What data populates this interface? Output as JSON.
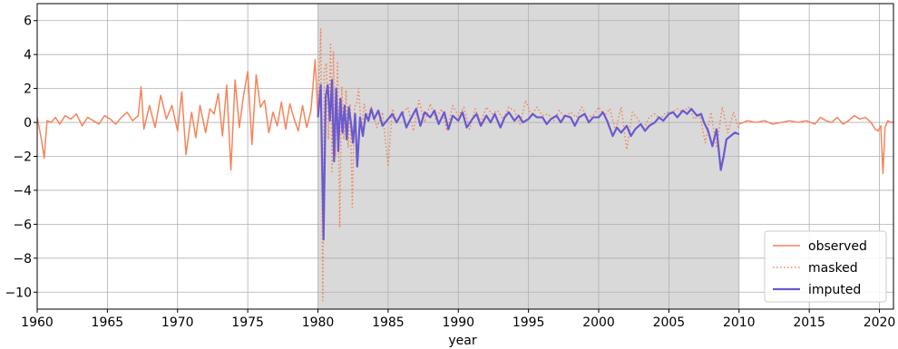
{
  "chart_data": {
    "type": "line",
    "title": "",
    "xlabel": "year",
    "ylabel": "",
    "xlim": [
      1960,
      2021
    ],
    "ylim": [
      -11,
      7
    ],
    "x_ticks": [
      1960,
      1965,
      1970,
      1975,
      1980,
      1985,
      1990,
      1995,
      2000,
      2005,
      2010,
      2015,
      2020
    ],
    "y_ticks": [
      6,
      4,
      2,
      0,
      -2,
      -4,
      -6,
      -8,
      -10
    ],
    "grid": true,
    "legend_position": "bottom-right",
    "shaded_region": {
      "x_start": 1980,
      "x_end": 2010,
      "color": "#d9d9d9"
    },
    "series": [
      {
        "name": "observed",
        "style": "solid",
        "color": "#f5845a",
        "segments": [
          {
            "x": [
              1960.0,
              1960.3,
              1960.5,
              1960.7,
              1961.0,
              1961.3,
              1961.6,
              1962.0,
              1962.4,
              1962.8,
              1963.2,
              1963.6,
              1964.0,
              1964.4,
              1964.8,
              1965.2,
              1965.6,
              1966.0,
              1966.4,
              1966.8,
              1967.2,
              1967.4,
              1967.6,
              1968.0,
              1968.4,
              1968.8,
              1969.2,
              1969.6,
              1970.0,
              1970.3,
              1970.6,
              1971.0,
              1971.3,
              1971.6,
              1972.0,
              1972.3,
              1972.6,
              1972.9,
              1973.2,
              1973.5,
              1973.8,
              1974.1,
              1974.4,
              1974.7,
              1975.0,
              1975.3,
              1975.6,
              1975.9,
              1976.2,
              1976.5,
              1976.8,
              1977.1,
              1977.4,
              1977.7,
              1978.0,
              1978.3,
              1978.6,
              1978.9,
              1979.2,
              1979.5,
              1979.8,
              1980.0
            ],
            "y": [
              0.3,
              -1.0,
              -2.1,
              0.1,
              0.0,
              0.3,
              -0.1,
              0.4,
              0.2,
              0.5,
              -0.2,
              0.3,
              0.1,
              -0.1,
              0.4,
              0.2,
              -0.1,
              0.3,
              0.6,
              0.1,
              0.4,
              2.1,
              -0.4,
              1.0,
              -0.3,
              1.6,
              0.2,
              1.0,
              -0.5,
              1.8,
              -1.9,
              0.6,
              -0.9,
              1.0,
              -0.6,
              0.8,
              0.5,
              1.7,
              -0.8,
              2.2,
              -2.8,
              2.5,
              -0.3,
              1.6,
              3.0,
              -1.3,
              2.8,
              0.9,
              1.3,
              -0.6,
              0.6,
              -0.2,
              1.2,
              -0.4,
              1.1,
              0.2,
              -0.5,
              1.0,
              -0.3,
              0.7,
              3.7,
              0.4
            ]
          },
          {
            "x": [
              2010.0,
              2010.6,
              2011.2,
              2011.8,
              2012.4,
              2013.0,
              2013.6,
              2014.2,
              2014.8,
              2015.4,
              2015.8,
              2016.2,
              2016.6,
              2017.0,
              2017.4,
              2017.8,
              2018.2,
              2018.6,
              2019.0,
              2019.4,
              2019.7,
              2019.9,
              2020.1,
              2020.25,
              2020.4,
              2020.6,
              2020.8,
              2021.0
            ],
            "y": [
              -0.1,
              0.1,
              0.0,
              0.1,
              -0.1,
              0.0,
              0.1,
              0.0,
              0.1,
              -0.1,
              0.3,
              0.1,
              0.0,
              0.3,
              -0.1,
              0.1,
              0.4,
              0.2,
              0.3,
              0.0,
              -0.4,
              -0.5,
              -0.2,
              -3.0,
              -0.3,
              0.1,
              0.0,
              0.0
            ]
          }
        ]
      },
      {
        "name": "masked",
        "style": "dotted",
        "color": "#f5845a",
        "segments": [
          {
            "x": [
              1980.0,
              1980.2,
              1980.35,
              1980.45,
              1980.6,
              1980.75,
              1980.9,
              1981.0,
              1981.1,
              1981.25,
              1981.4,
              1981.55,
              1981.7,
              1981.85,
              1982.0,
              1982.15,
              1982.3,
              1982.45,
              1982.6,
              1982.75,
              1982.9,
              1983.1,
              1983.3,
              1983.5,
              1983.8,
              1984.2,
              1984.6,
              1985.0,
              1985.3,
              1985.6,
              1986.0,
              1986.4,
              1986.8,
              1987.2,
              1987.6,
              1988.0,
              1988.4,
              1988.8,
              1989.2,
              1989.6,
              1990.0,
              1990.4,
              1990.8,
              1991.2,
              1991.6,
              1992.0,
              1992.4,
              1992.8,
              1993.2,
              1993.6,
              1994.0,
              1994.4,
              1994.8,
              1995.2,
              1995.6,
              1996.0,
              1996.4,
              1996.8,
              1997.2,
              1997.6,
              1998.0,
              1998.4,
              1998.8,
              1999.2,
              1999.6,
              2000.0,
              2000.4,
              2000.8,
              2001.2,
              2001.6,
              2002.0,
              2002.4,
              2002.8,
              2003.2,
              2003.6,
              2004.0,
              2004.4,
              2004.8,
              2005.2,
              2005.6,
              2006.0,
              2006.4,
              2006.8,
              2007.2,
              2007.6,
              2008.0,
              2008.4,
              2008.8,
              2009.2,
              2009.6,
              2010.0
            ],
            "y": [
              0.3,
              5.5,
              -10.5,
              3.0,
              3.5,
              -1.0,
              4.6,
              -3.0,
              4.2,
              -2.0,
              3.6,
              -6.2,
              2.1,
              -1.0,
              1.9,
              -1.5,
              1.1,
              -5.0,
              0.9,
              1.1,
              2.0,
              -0.5,
              1.1,
              0.3,
              0.9,
              -0.3,
              0.6,
              -2.6,
              0.8,
              0.1,
              0.5,
              0.9,
              -0.5,
              1.3,
              0.0,
              1.1,
              0.2,
              0.8,
              -0.5,
              1.0,
              0.4,
              0.9,
              -0.4,
              0.8,
              0.0,
              0.9,
              0.5,
              0.7,
              0.2,
              0.9,
              0.7,
              -0.1,
              1.3,
              0.4,
              0.9,
              0.4,
              0.5,
              0.1,
              0.7,
              0.3,
              0.6,
              0.3,
              0.9,
              0.3,
              0.4,
              0.9,
              0.4,
              0.8,
              -0.5,
              0.9,
              -1.6,
              0.6,
              0.2,
              -0.4,
              0.3,
              0.5,
              0.2,
              0.6,
              0.6,
              0.8,
              0.6,
              0.9,
              0.2,
              0.4,
              -1.2,
              0.6,
              -1.5,
              0.9,
              -0.6,
              0.6,
              -0.4
            ]
          }
        ]
      },
      {
        "name": "imputed",
        "style": "solid-thick",
        "color": "#6a5acd",
        "segments": [
          {
            "x": [
              1980.0,
              1980.2,
              1980.4,
              1980.55,
              1980.7,
              1980.85,
              1981.0,
              1981.15,
              1981.3,
              1981.45,
              1981.6,
              1981.75,
              1981.9,
              1982.05,
              1982.2,
              1982.35,
              1982.5,
              1982.65,
              1982.8,
              1983.0,
              1983.2,
              1983.4,
              1983.6,
              1983.8,
              1984.0,
              1984.3,
              1984.6,
              1985.0,
              1985.3,
              1985.6,
              1986.0,
              1986.3,
              1986.6,
              1987.0,
              1987.3,
              1987.6,
              1988.0,
              1988.3,
              1988.6,
              1989.0,
              1989.3,
              1989.6,
              1990.0,
              1990.3,
              1990.6,
              1991.0,
              1991.3,
              1991.6,
              1992.0,
              1992.3,
              1992.6,
              1993.0,
              1993.3,
              1993.6,
              1994.0,
              1994.3,
              1994.6,
              1995.0,
              1995.3,
              1995.6,
              1996.0,
              1996.3,
              1996.6,
              1997.0,
              1997.3,
              1997.6,
              1998.0,
              1998.3,
              1998.6,
              1999.0,
              1999.3,
              1999.6,
              2000.0,
              2000.3,
              2000.6,
              2001.0,
              2001.3,
              2001.6,
              2002.0,
              2002.3,
              2002.6,
              2003.0,
              2003.3,
              2003.6,
              2004.0,
              2004.3,
              2004.6,
              2005.0,
              2005.3,
              2005.6,
              2006.0,
              2006.3,
              2006.6,
              2007.0,
              2007.3,
              2007.5,
              2007.8,
              2008.1,
              2008.4,
              2008.7,
              2008.9,
              2009.1,
              2009.4,
              2009.7,
              2010.0
            ],
            "y": [
              0.3,
              2.2,
              -6.9,
              1.5,
              2.2,
              0.1,
              2.5,
              -2.3,
              2.0,
              -1.7,
              1.4,
              -0.6,
              1.0,
              -1.0,
              0.9,
              0.0,
              -1.2,
              0.5,
              -2.6,
              0.3,
              -0.8,
              0.5,
              0.1,
              0.8,
              0.2,
              0.7,
              -0.2,
              0.2,
              0.5,
              0.0,
              0.6,
              -0.3,
              0.2,
              0.8,
              -0.2,
              0.6,
              0.3,
              0.7,
              -0.1,
              0.6,
              -0.4,
              0.4,
              0.1,
              0.6,
              -0.3,
              0.2,
              0.5,
              -0.2,
              0.4,
              0.0,
              0.5,
              -0.3,
              0.3,
              0.6,
              0.1,
              0.4,
              0.0,
              0.2,
              0.5,
              0.3,
              0.3,
              -0.1,
              0.2,
              0.4,
              0.0,
              0.4,
              0.3,
              -0.2,
              0.3,
              0.5,
              0.0,
              0.3,
              0.3,
              0.6,
              0.1,
              -0.8,
              -0.3,
              -0.6,
              -0.2,
              -0.8,
              -0.4,
              -0.1,
              -0.5,
              -0.2,
              0.0,
              0.3,
              0.1,
              0.5,
              0.6,
              0.3,
              0.7,
              0.5,
              0.8,
              0.4,
              0.5,
              0.0,
              -0.5,
              -1.4,
              -0.4,
              -2.8,
              -2.0,
              -1.0,
              -0.8,
              -0.6,
              -0.7
            ]
          }
        ]
      }
    ]
  }
}
